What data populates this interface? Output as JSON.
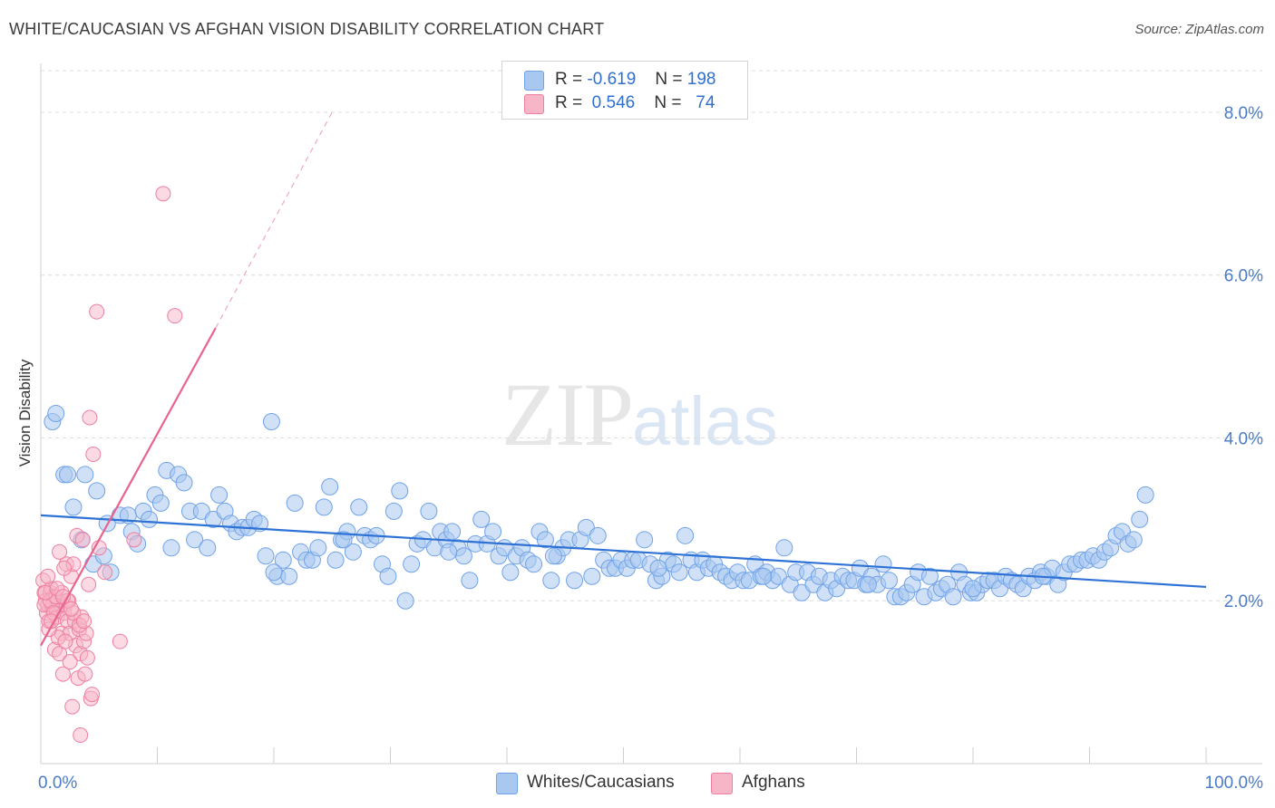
{
  "header": {
    "title": "WHITE/CAUCASIAN VS AFGHAN VISION DISABILITY CORRELATION CHART",
    "source": "Source: ZipAtlas.com"
  },
  "watermark": {
    "zip": "ZIP",
    "atlas": "atlas"
  },
  "legend": {
    "rows": [
      {
        "r_label": "R =",
        "r_value": "-0.619",
        "n_label": "N =",
        "n_value": "198",
        "color": "#a9c8f0"
      },
      {
        "r_label": "R =",
        "r_value": "0.546",
        "n_label": "N =",
        "n_value": "74",
        "color": "#f7b6c8"
      }
    ]
  },
  "bottom_legend": [
    {
      "label": "Whites/Caucasians",
      "color": "#a9c8f0"
    },
    {
      "label": "Afghans",
      "color": "#f7b6c8"
    }
  ],
  "chart_data": {
    "type": "scatter",
    "title": "WHITE/CAUCASIAN VS AFGHAN VISION DISABILITY CORRELATION CHART",
    "xlabel": "",
    "ylabel": "Vision Disability",
    "xlim": [
      0,
      100
    ],
    "ylim": [
      0,
      8.6
    ],
    "x_tick_labels": [
      "0.0%",
      "100.0%"
    ],
    "y_ticks": [
      2.0,
      4.0,
      6.0,
      8.0
    ],
    "y_tick_labels": [
      "2.0%",
      "4.0%",
      "6.0%",
      "8.0%"
    ],
    "grid": true,
    "legend_position": "top-center",
    "colors": {
      "white": "#6fa2e8",
      "white_fill": "#a9c8f0",
      "afghan": "#ee7fa0",
      "afghan_fill": "#f7b6c8",
      "white_line": "#2f72d6",
      "afghan_line": "#e8648e"
    },
    "series": [
      {
        "name": "Whites/Caucasians",
        "trend": {
          "x": [
            0,
            100
          ],
          "y": [
            3.05,
            2.17
          ]
        },
        "points": [
          [
            1.0,
            4.2
          ],
          [
            1.3,
            4.3
          ],
          [
            2.0,
            3.55
          ],
          [
            2.3,
            3.55
          ],
          [
            2.8,
            3.15
          ],
          [
            3.5,
            2.75
          ],
          [
            3.8,
            3.55
          ],
          [
            4.5,
            2.45
          ],
          [
            4.8,
            3.35
          ],
          [
            5.4,
            2.55
          ],
          [
            5.7,
            2.95
          ],
          [
            6.0,
            2.35
          ],
          [
            6.8,
            3.05
          ],
          [
            7.5,
            3.05
          ],
          [
            7.8,
            2.85
          ],
          [
            8.3,
            2.7
          ],
          [
            8.8,
            3.1
          ],
          [
            9.3,
            3.0
          ],
          [
            9.8,
            3.3
          ],
          [
            10.3,
            3.2
          ],
          [
            10.8,
            3.6
          ],
          [
            11.2,
            2.65
          ],
          [
            11.8,
            3.55
          ],
          [
            12.3,
            3.45
          ],
          [
            12.8,
            3.1
          ],
          [
            13.2,
            2.75
          ],
          [
            13.8,
            3.1
          ],
          [
            14.3,
            2.65
          ],
          [
            14.8,
            3.0
          ],
          [
            15.3,
            3.3
          ],
          [
            15.8,
            3.1
          ],
          [
            16.3,
            2.95
          ],
          [
            16.8,
            2.85
          ],
          [
            17.3,
            2.9
          ],
          [
            17.8,
            2.9
          ],
          [
            18.3,
            3.0
          ],
          [
            18.8,
            2.95
          ],
          [
            19.3,
            2.55
          ],
          [
            19.8,
            4.2
          ],
          [
            20.3,
            2.3
          ],
          [
            20.8,
            2.5
          ],
          [
            21.3,
            2.3
          ],
          [
            21.8,
            3.2
          ],
          [
            22.3,
            2.6
          ],
          [
            22.8,
            2.5
          ],
          [
            23.3,
            2.5
          ],
          [
            23.8,
            2.65
          ],
          [
            24.3,
            3.15
          ],
          [
            24.8,
            3.4
          ],
          [
            25.3,
            2.5
          ],
          [
            25.8,
            2.75
          ],
          [
            26.3,
            2.85
          ],
          [
            26.8,
            2.6
          ],
          [
            27.3,
            3.15
          ],
          [
            27.8,
            2.8
          ],
          [
            28.3,
            2.75
          ],
          [
            28.8,
            2.8
          ],
          [
            29.3,
            2.45
          ],
          [
            29.8,
            2.3
          ],
          [
            30.3,
            3.1
          ],
          [
            30.8,
            3.35
          ],
          [
            31.3,
            2.0
          ],
          [
            31.8,
            2.45
          ],
          [
            32.3,
            2.7
          ],
          [
            32.8,
            2.75
          ],
          [
            33.3,
            3.1
          ],
          [
            33.8,
            2.65
          ],
          [
            34.3,
            2.85
          ],
          [
            34.8,
            2.75
          ],
          [
            35.3,
            2.85
          ],
          [
            35.8,
            2.65
          ],
          [
            36.3,
            2.55
          ],
          [
            36.8,
            2.25
          ],
          [
            37.3,
            2.7
          ],
          [
            37.8,
            3.0
          ],
          [
            38.3,
            2.7
          ],
          [
            38.8,
            2.85
          ],
          [
            39.3,
            2.55
          ],
          [
            39.8,
            2.65
          ],
          [
            40.3,
            2.35
          ],
          [
            40.8,
            2.55
          ],
          [
            41.3,
            2.65
          ],
          [
            41.8,
            2.5
          ],
          [
            42.3,
            2.45
          ],
          [
            42.8,
            2.85
          ],
          [
            43.3,
            2.75
          ],
          [
            43.8,
            2.25
          ],
          [
            44.3,
            2.55
          ],
          [
            44.8,
            2.65
          ],
          [
            45.3,
            2.75
          ],
          [
            45.8,
            2.25
          ],
          [
            46.3,
            2.75
          ],
          [
            46.8,
            2.9
          ],
          [
            47.3,
            2.3
          ],
          [
            47.8,
            2.8
          ],
          [
            48.3,
            2.5
          ],
          [
            48.8,
            2.4
          ],
          [
            49.3,
            2.4
          ],
          [
            49.8,
            2.5
          ],
          [
            50.3,
            2.4
          ],
          [
            50.8,
            2.5
          ],
          [
            51.3,
            2.5
          ],
          [
            51.8,
            2.75
          ],
          [
            52.3,
            2.45
          ],
          [
            52.8,
            2.25
          ],
          [
            53.3,
            2.3
          ],
          [
            53.8,
            2.5
          ],
          [
            54.3,
            2.45
          ],
          [
            54.8,
            2.35
          ],
          [
            55.3,
            2.8
          ],
          [
            55.8,
            2.5
          ],
          [
            56.3,
            2.35
          ],
          [
            56.8,
            2.5
          ],
          [
            57.3,
            2.4
          ],
          [
            57.8,
            2.45
          ],
          [
            58.3,
            2.35
          ],
          [
            58.8,
            2.3
          ],
          [
            59.3,
            2.25
          ],
          [
            59.8,
            2.35
          ],
          [
            60.3,
            2.25
          ],
          [
            60.8,
            2.25
          ],
          [
            61.3,
            2.45
          ],
          [
            61.8,
            2.3
          ],
          [
            62.3,
            2.35
          ],
          [
            62.8,
            2.25
          ],
          [
            63.3,
            2.3
          ],
          [
            63.8,
            2.65
          ],
          [
            64.3,
            2.2
          ],
          [
            64.8,
            2.35
          ],
          [
            65.3,
            2.1
          ],
          [
            65.8,
            2.35
          ],
          [
            66.3,
            2.2
          ],
          [
            66.8,
            2.3
          ],
          [
            67.3,
            2.1
          ],
          [
            67.8,
            2.25
          ],
          [
            68.3,
            2.15
          ],
          [
            68.8,
            2.3
          ],
          [
            69.3,
            2.25
          ],
          [
            69.8,
            2.25
          ],
          [
            70.3,
            2.4
          ],
          [
            70.8,
            2.2
          ],
          [
            71.3,
            2.3
          ],
          [
            71.8,
            2.2
          ],
          [
            72.3,
            2.45
          ],
          [
            72.8,
            2.25
          ],
          [
            73.3,
            2.05
          ],
          [
            73.8,
            2.05
          ],
          [
            74.3,
            2.1
          ],
          [
            74.8,
            2.2
          ],
          [
            75.3,
            2.35
          ],
          [
            75.8,
            2.05
          ],
          [
            76.3,
            2.3
          ],
          [
            76.8,
            2.1
          ],
          [
            77.3,
            2.15
          ],
          [
            77.8,
            2.2
          ],
          [
            78.3,
            2.05
          ],
          [
            78.8,
            2.35
          ],
          [
            79.3,
            2.2
          ],
          [
            79.8,
            2.1
          ],
          [
            80.3,
            2.1
          ],
          [
            80.8,
            2.2
          ],
          [
            81.3,
            2.25
          ],
          [
            81.8,
            2.25
          ],
          [
            82.3,
            2.15
          ],
          [
            82.8,
            2.3
          ],
          [
            83.3,
            2.25
          ],
          [
            83.8,
            2.2
          ],
          [
            84.3,
            2.15
          ],
          [
            84.8,
            2.3
          ],
          [
            85.3,
            2.25
          ],
          [
            85.8,
            2.35
          ],
          [
            86.3,
            2.3
          ],
          [
            86.8,
            2.4
          ],
          [
            87.3,
            2.2
          ],
          [
            87.8,
            2.35
          ],
          [
            88.3,
            2.45
          ],
          [
            88.8,
            2.45
          ],
          [
            89.3,
            2.5
          ],
          [
            89.8,
            2.5
          ],
          [
            90.3,
            2.55
          ],
          [
            90.8,
            2.5
          ],
          [
            91.3,
            2.6
          ],
          [
            91.8,
            2.65
          ],
          [
            92.3,
            2.8
          ],
          [
            92.8,
            2.85
          ],
          [
            93.3,
            2.7
          ],
          [
            93.8,
            2.75
          ],
          [
            94.3,
            3.0
          ],
          [
            94.8,
            3.3
          ],
          [
            20.0,
            2.35
          ],
          [
            26.0,
            2.75
          ],
          [
            35.0,
            2.6
          ],
          [
            44.0,
            2.55
          ],
          [
            53.0,
            2.4
          ],
          [
            62.0,
            2.3
          ],
          [
            71.0,
            2.2
          ],
          [
            80.0,
            2.15
          ],
          [
            86.0,
            2.3
          ]
        ]
      },
      {
        "name": "Afghans",
        "trend": {
          "x": [
            0,
            15
          ],
          "y": [
            1.45,
            5.35
          ]
        },
        "trend_dashed": {
          "x": [
            15,
            25
          ],
          "y": [
            5.35,
            8.0
          ]
        },
        "points": [
          [
            0.2,
            2.25
          ],
          [
            0.3,
            2.1
          ],
          [
            0.4,
            2.0
          ],
          [
            0.5,
            1.85
          ],
          [
            0.6,
            1.95
          ],
          [
            0.7,
            1.75
          ],
          [
            0.8,
            2.1
          ],
          [
            0.9,
            2.15
          ],
          [
            1.0,
            1.9
          ],
          [
            1.1,
            2.05
          ],
          [
            1.2,
            1.4
          ],
          [
            1.3,
            1.9
          ],
          [
            1.4,
            1.8
          ],
          [
            1.5,
            2.0
          ],
          [
            1.6,
            1.35
          ],
          [
            1.7,
            1.95
          ],
          [
            1.8,
            1.6
          ],
          [
            1.9,
            1.1
          ],
          [
            2.0,
            1.85
          ],
          [
            2.1,
            1.95
          ],
          [
            2.2,
            2.45
          ],
          [
            2.3,
            1.75
          ],
          [
            2.4,
            2.0
          ],
          [
            2.5,
            1.6
          ],
          [
            2.6,
            2.3
          ],
          [
            2.7,
            0.7
          ],
          [
            2.8,
            2.45
          ],
          [
            2.9,
            1.75
          ],
          [
            3.0,
            1.45
          ],
          [
            3.1,
            2.8
          ],
          [
            3.2,
            1.05
          ],
          [
            3.3,
            1.65
          ],
          [
            3.4,
            1.35
          ],
          [
            3.5,
            1.8
          ],
          [
            3.6,
            2.75
          ],
          [
            3.7,
            1.5
          ],
          [
            3.8,
            1.1
          ],
          [
            3.9,
            1.6
          ],
          [
            4.0,
            1.3
          ],
          [
            4.1,
            2.2
          ],
          [
            4.2,
            4.25
          ],
          [
            4.3,
            0.8
          ],
          [
            4.4,
            0.85
          ],
          [
            4.5,
            3.8
          ],
          [
            4.8,
            5.55
          ],
          [
            5.0,
            2.65
          ],
          [
            5.5,
            2.35
          ],
          [
            6.8,
            1.5
          ],
          [
            8.0,
            2.75
          ],
          [
            10.5,
            7.0
          ],
          [
            11.5,
            5.5
          ],
          [
            0.6,
            2.3
          ],
          [
            1.0,
            1.95
          ],
          [
            1.5,
            1.55
          ],
          [
            2.0,
            2.4
          ],
          [
            2.5,
            1.25
          ],
          [
            0.3,
            1.95
          ],
          [
            0.8,
            2.0
          ],
          [
            1.3,
            2.05
          ],
          [
            1.8,
            2.1
          ],
          [
            2.3,
            2.0
          ],
          [
            2.8,
            1.85
          ],
          [
            3.3,
            1.7
          ],
          [
            0.4,
            2.1
          ],
          [
            1.1,
            1.85
          ],
          [
            1.6,
            2.6
          ],
          [
            2.1,
            1.5
          ],
          [
            0.7,
            1.65
          ],
          [
            1.4,
            2.15
          ],
          [
            2.6,
            1.9
          ],
          [
            3.4,
            0.35
          ],
          [
            0.9,
            1.75
          ],
          [
            1.9,
            2.05
          ],
          [
            3.7,
            1.75
          ]
        ]
      }
    ]
  }
}
